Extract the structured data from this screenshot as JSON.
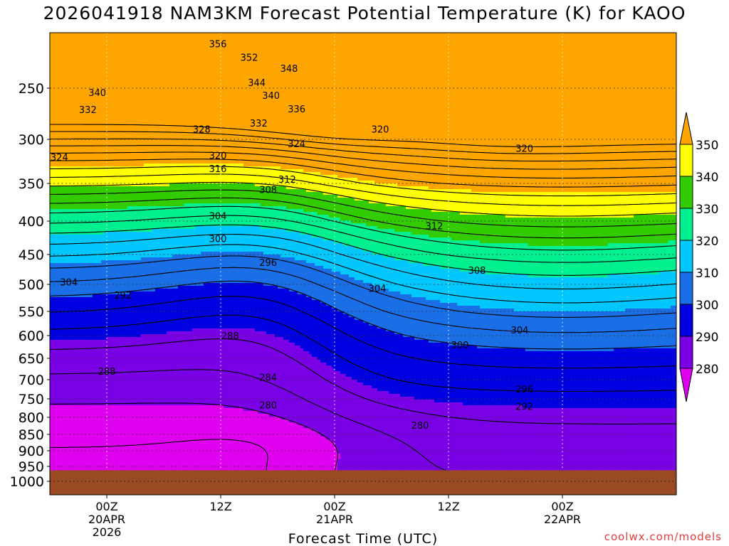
{
  "chart_data": {
    "type": "contour",
    "title": "2026041918 NAM3KM Forecast Potential Temperature (K) for KAOO",
    "xlabel": "Forecast Time (UTC)",
    "ylabel": "",
    "y_ticks": [
      250,
      300,
      350,
      400,
      450,
      500,
      550,
      600,
      650,
      700,
      750,
      800,
      850,
      900,
      950,
      1000
    ],
    "y_range": [
      200,
      1000
    ],
    "x_range_hours": [
      -6,
      60
    ],
    "x_ticks": [
      {
        "hour": 0,
        "label": "00Z",
        "sub1": "20APR",
        "sub2": "2026"
      },
      {
        "hour": 12,
        "label": "12Z",
        "sub1": "",
        "sub2": ""
      },
      {
        "hour": 24,
        "label": "00Z",
        "sub1": "21APR",
        "sub2": ""
      },
      {
        "hour": 36,
        "label": "12Z",
        "sub1": "",
        "sub2": ""
      },
      {
        "hour": 48,
        "label": "00Z",
        "sub1": "22APR",
        "sub2": ""
      }
    ],
    "ground_level_hpa": 963,
    "colorbar": {
      "labels": [
        "350",
        "340",
        "330",
        "320",
        "310",
        "300",
        "290",
        "280"
      ],
      "colors": [
        "#ffa500",
        "#ffff00",
        "#33cc00",
        "#00f090",
        "#00c8ff",
        "#1a6ee6",
        "#0000e0",
        "#7a00e6",
        "#e000f0"
      ]
    },
    "contour_labels": [
      {
        "text": "356",
        "h": 11.7,
        "p": 210
      },
      {
        "text": "352",
        "h": 15,
        "p": 222
      },
      {
        "text": "348",
        "h": 19.2,
        "p": 232
      },
      {
        "text": "344",
        "h": 15.8,
        "p": 245
      },
      {
        "text": "340",
        "h": -1,
        "p": 254
      },
      {
        "text": "340",
        "h": 17.3,
        "p": 257
      },
      {
        "text": "336",
        "h": 20,
        "p": 270
      },
      {
        "text": "332",
        "h": -2,
        "p": 271
      },
      {
        "text": "332",
        "h": 16,
        "p": 284
      },
      {
        "text": "328",
        "h": 10,
        "p": 290
      },
      {
        "text": "324",
        "h": 20,
        "p": 305
      },
      {
        "text": "324",
        "h": -5,
        "p": 320
      },
      {
        "text": "320",
        "h": 28.8,
        "p": 290
      },
      {
        "text": "320",
        "h": 44,
        "p": 310
      },
      {
        "text": "320",
        "h": 11.7,
        "p": 318
      },
      {
        "text": "316",
        "h": 11.7,
        "p": 333
      },
      {
        "text": "312",
        "h": 19,
        "p": 345
      },
      {
        "text": "308",
        "h": 17,
        "p": 358
      },
      {
        "text": "304",
        "h": 11.7,
        "p": 393
      },
      {
        "text": "300",
        "h": 11.7,
        "p": 426
      },
      {
        "text": "312",
        "h": 34.5,
        "p": 407
      },
      {
        "text": "296",
        "h": 17,
        "p": 463
      },
      {
        "text": "304",
        "h": -4,
        "p": 496
      },
      {
        "text": "292",
        "h": 1.7,
        "p": 520
      },
      {
        "text": "304",
        "h": 28.5,
        "p": 507
      },
      {
        "text": "308",
        "h": 39,
        "p": 476
      },
      {
        "text": "304",
        "h": 43.5,
        "p": 588
      },
      {
        "text": "300",
        "h": 37.2,
        "p": 620
      },
      {
        "text": "288",
        "h": 13,
        "p": 600
      },
      {
        "text": "288",
        "h": 0,
        "p": 680
      },
      {
        "text": "284",
        "h": 17,
        "p": 694
      },
      {
        "text": "296",
        "h": 44,
        "p": 724
      },
      {
        "text": "292",
        "h": 44,
        "p": 770
      },
      {
        "text": "280",
        "h": 17,
        "p": 766
      },
      {
        "text": "280",
        "h": 33,
        "p": 823
      }
    ]
  },
  "credit": "coolwx.com/models"
}
